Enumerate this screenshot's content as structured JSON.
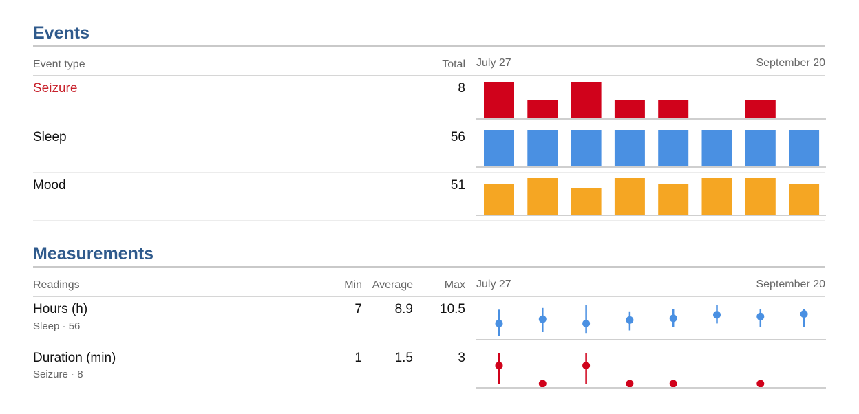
{
  "events": {
    "title": "Events",
    "col_event_type": "Event type",
    "col_total": "Total",
    "date_start": "July 27",
    "date_end": "September 20",
    "rows": [
      {
        "label": "Seizure",
        "total": "8",
        "color": "#d0021b",
        "bars": [
          1.0,
          0.5,
          1.0,
          0.5,
          0.5,
          0,
          0.5,
          0
        ]
      },
      {
        "label": "Sleep",
        "total": "56",
        "color": "#4a90e2",
        "bars": [
          1,
          1,
          1,
          1,
          1,
          1,
          1,
          1
        ]
      },
      {
        "label": "Mood",
        "total": "51",
        "color": "#f5a623",
        "bars": [
          0.85,
          1.0,
          0.72,
          1.0,
          0.85,
          1.0,
          1.0,
          0.85
        ]
      }
    ]
  },
  "measurements": {
    "title": "Measurements",
    "col_readings": "Readings",
    "col_min": "Min",
    "col_average": "Average",
    "col_max": "Max",
    "date_start": "July 27",
    "date_end": "September 20",
    "rows": [
      {
        "label": "Hours (h)",
        "sublabel": "Sleep · 56",
        "min": "7",
        "average": "8.9",
        "max": "10.5",
        "color": "#4a90e2",
        "scale": [
          7,
          10.5
        ],
        "points": [
          {
            "lo": 7.0,
            "hi": 10.0,
            "avg": 8.4
          },
          {
            "lo": 7.4,
            "hi": 10.2,
            "avg": 8.9
          },
          {
            "lo": 7.3,
            "hi": 10.5,
            "avg": 8.4
          },
          {
            "lo": 7.6,
            "hi": 9.8,
            "avg": 8.8
          },
          {
            "lo": 8.0,
            "hi": 10.1,
            "avg": 9.0
          },
          {
            "lo": 8.4,
            "hi": 10.5,
            "avg": 9.4
          },
          {
            "lo": 8.0,
            "hi": 10.1,
            "avg": 9.2
          },
          {
            "lo": 8.0,
            "hi": 10.1,
            "avg": 9.5
          }
        ]
      },
      {
        "label": "Duration (min)",
        "sublabel": "Seizure · 8",
        "min": "1",
        "average": "1.5",
        "max": "3",
        "color": "#d0021b",
        "scale": [
          1,
          3
        ],
        "points": [
          {
            "lo": 1,
            "hi": 3,
            "avg": 2.2
          },
          {
            "lo": 1,
            "hi": 1,
            "avg": 1
          },
          {
            "lo": 1,
            "hi": 3,
            "avg": 2.2
          },
          {
            "lo": 1,
            "hi": 1,
            "avg": 1
          },
          {
            "lo": 1,
            "hi": 1,
            "avg": 1
          },
          null,
          {
            "lo": 1,
            "hi": 1,
            "avg": 1
          },
          null
        ]
      }
    ]
  }
}
